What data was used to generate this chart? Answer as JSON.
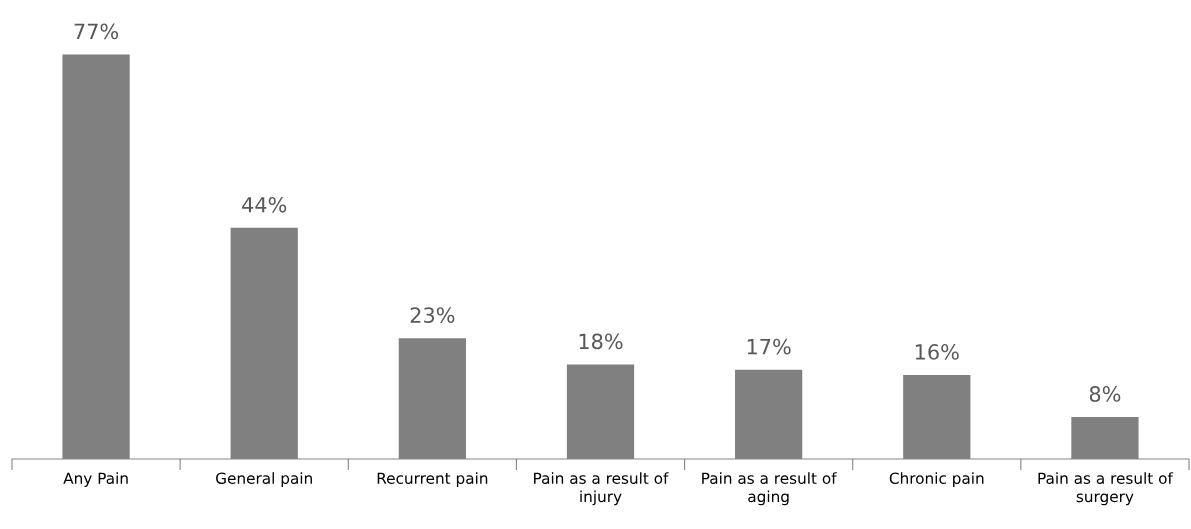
{
  "chart_data": {
    "type": "bar",
    "categories": [
      "Any Pain",
      "General pain",
      "Recurrent pain",
      "Pain as a result of injury",
      "Pain as a result of aging",
      "Chronic pain",
      "Pain as a result of surgery"
    ],
    "values": [
      77,
      44,
      23,
      18,
      17,
      16,
      8
    ],
    "value_labels": [
      "77%",
      "44%",
      "23%",
      "18%",
      "17%",
      "16%",
      "8%"
    ],
    "color": "#808080",
    "grid": false,
    "legend": false
  }
}
